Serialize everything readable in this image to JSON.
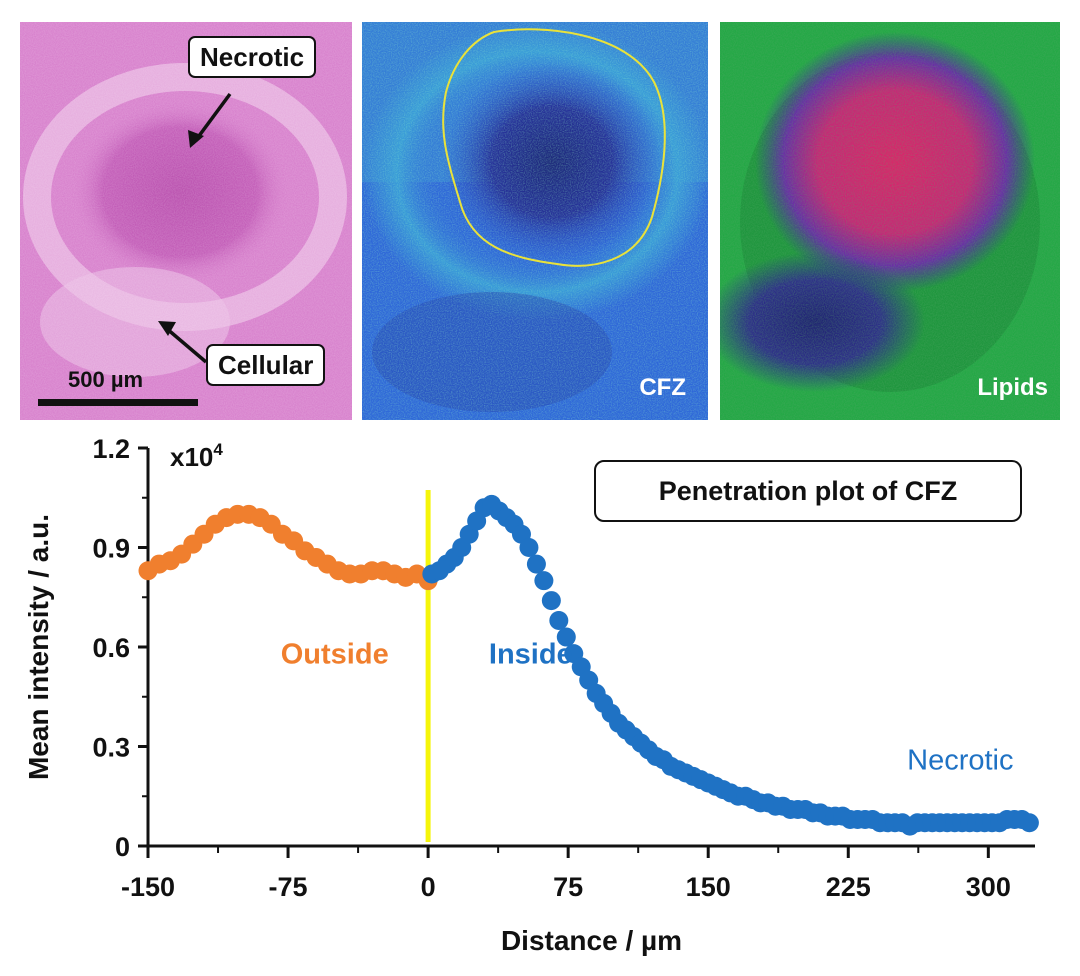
{
  "panels": {
    "he": {
      "callout_necrotic": "Necrotic",
      "callout_cellular": "Cellular",
      "scale_label": "500 µm"
    },
    "cfz": {
      "label": "CFZ"
    },
    "lipids": {
      "label": "Lipids"
    }
  },
  "colors": {
    "outside": "#f07f2e",
    "inside": "#1f72c4",
    "boundary_line": "#f5f50a",
    "he_pink": "#d77fcc",
    "cfz_background": "#2f68d8",
    "lipids_green": "#23a845",
    "lipids_core": "#d22070"
  },
  "chart_data": {
    "type": "scatter",
    "title": "Penetration plot of CFZ",
    "xlabel": "Distance / µm",
    "ylabel": "Mean intensity / a.u.",
    "y_multiplier_label": "x10",
    "y_multiplier_exp": "4",
    "xlim": [
      -150,
      325
    ],
    "ylim": [
      0,
      1.2
    ],
    "xticks": [
      -150,
      -75,
      0,
      75,
      150,
      225,
      300
    ],
    "yticks": [
      0,
      0.3,
      0.6,
      0.9,
      1.2
    ],
    "ytick_labels": [
      "0",
      "0.3",
      "0.6",
      "0.9",
      "1.2"
    ],
    "boundary_x": 0,
    "annotations": [
      {
        "text": "Outside",
        "series": "outside"
      },
      {
        "text": "Inside",
        "series": "inside"
      },
      {
        "text": "Necrotic",
        "series": "inside"
      }
    ],
    "series": [
      {
        "key": "outside",
        "x": [
          -150,
          -144,
          -138,
          -132,
          -126,
          -120,
          -114,
          -108,
          -102,
          -96,
          -90,
          -84,
          -78,
          -72,
          -66,
          -60,
          -54,
          -48,
          -42,
          -36,
          -30,
          -24,
          -18,
          -12,
          -6,
          0
        ],
        "values": [
          0.83,
          0.85,
          0.86,
          0.88,
          0.91,
          0.94,
          0.97,
          0.99,
          1.0,
          1.0,
          0.99,
          0.97,
          0.94,
          0.92,
          0.89,
          0.87,
          0.85,
          0.83,
          0.82,
          0.82,
          0.83,
          0.83,
          0.82,
          0.81,
          0.82,
          0.8
        ]
      },
      {
        "key": "inside",
        "x": [
          2,
          6,
          10,
          14,
          18,
          22,
          26,
          30,
          34,
          38,
          42,
          46,
          50,
          54,
          58,
          62,
          66,
          70,
          74,
          78,
          82,
          86,
          90,
          94,
          98,
          102,
          106,
          110,
          114,
          118,
          122,
          126,
          130,
          134,
          138,
          142,
          146,
          150,
          154,
          158,
          162,
          166,
          170,
          174,
          178,
          182,
          186,
          190,
          194,
          198,
          202,
          206,
          210,
          214,
          218,
          222,
          226,
          230,
          234,
          238,
          242,
          246,
          250,
          254,
          258,
          262,
          266,
          270,
          274,
          278,
          282,
          286,
          290,
          294,
          298,
          302,
          306,
          310,
          314,
          318,
          322
        ],
        "values": [
          0.82,
          0.83,
          0.85,
          0.87,
          0.9,
          0.94,
          0.98,
          1.02,
          1.03,
          1.01,
          0.99,
          0.97,
          0.94,
          0.9,
          0.85,
          0.8,
          0.74,
          0.68,
          0.63,
          0.58,
          0.54,
          0.5,
          0.46,
          0.43,
          0.4,
          0.37,
          0.35,
          0.33,
          0.31,
          0.29,
          0.27,
          0.26,
          0.24,
          0.23,
          0.22,
          0.21,
          0.2,
          0.19,
          0.18,
          0.17,
          0.16,
          0.15,
          0.15,
          0.14,
          0.13,
          0.13,
          0.12,
          0.12,
          0.11,
          0.11,
          0.11,
          0.1,
          0.1,
          0.09,
          0.09,
          0.09,
          0.08,
          0.08,
          0.08,
          0.08,
          0.07,
          0.07,
          0.07,
          0.07,
          0.06,
          0.07,
          0.07,
          0.07,
          0.07,
          0.07,
          0.07,
          0.07,
          0.07,
          0.07,
          0.07,
          0.07,
          0.07,
          0.08,
          0.08,
          0.08,
          0.07
        ]
      }
    ]
  }
}
